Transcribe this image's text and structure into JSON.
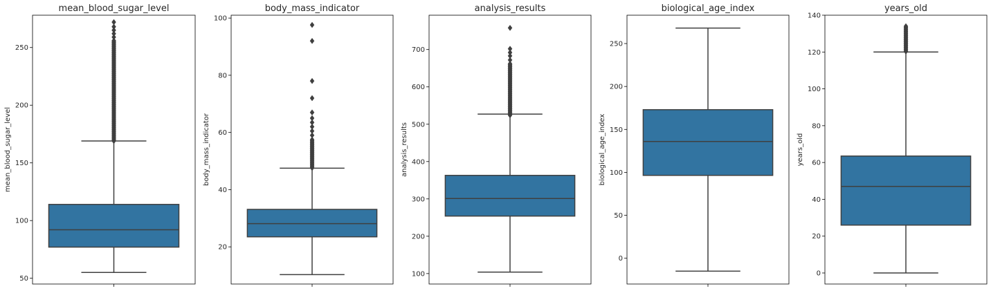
{
  "chart_data": [
    {
      "type": "box",
      "title": "mean_blood_sugar_level",
      "ylabel": "mean_blood_sugar_level",
      "ylim": [
        45,
        278
      ],
      "yticks": [
        50,
        100,
        150,
        200,
        250
      ],
      "box_color": "#3274a1",
      "stats": {
        "whisker_low": 55,
        "q1": 77,
        "median": 92,
        "q3": 114,
        "whisker_high": 169
      },
      "outliers": {
        "dense_from": 169,
        "dense_to": 256,
        "points": [
          259,
          262,
          265,
          268,
          272
        ]
      }
    },
    {
      "type": "box",
      "title": "body_mass_indicator",
      "ylabel": "body_mass_indicator",
      "ylim": [
        7,
        101
      ],
      "yticks": [
        20,
        40,
        60,
        80,
        100
      ],
      "box_color": "#3274a1",
      "stats": {
        "whisker_low": 10.3,
        "q1": 23.5,
        "median": 28.1,
        "q3": 33.1,
        "whisker_high": 47.5
      },
      "outliers": {
        "dense_from": 47.6,
        "dense_to": 57.5,
        "points": [
          59,
          60.5,
          62,
          63.5,
          65,
          67,
          72,
          78,
          92,
          97.6
        ]
      }
    },
    {
      "type": "box",
      "title": "analysis_results",
      "ylabel": "analysis_results",
      "ylim": [
        72,
        792
      ],
      "yticks": [
        100,
        200,
        300,
        400,
        500,
        600,
        700
      ],
      "box_color": "#3274a1",
      "stats": {
        "whisker_low": 104,
        "q1": 254,
        "median": 301,
        "q3": 363,
        "whisker_high": 527
      },
      "outliers": {
        "dense_from": 524,
        "dense_to": 662,
        "points": [
          672,
          683,
          692,
          702,
          758
        ]
      }
    },
    {
      "type": "box",
      "title": "biological_age_index",
      "ylabel": "biological_age_index",
      "ylim": [
        -30,
        283
      ],
      "yticks": [
        0,
        50,
        100,
        150,
        200,
        250
      ],
      "box_color": "#3274a1",
      "stats": {
        "whisker_low": -15,
        "q1": 96.5,
        "median": 136,
        "q3": 173,
        "whisker_high": 268
      },
      "outliers": {
        "dense_from": null,
        "dense_to": null,
        "points": []
      }
    },
    {
      "type": "box",
      "title": "years_old",
      "ylabel": "years_old",
      "ylim": [
        -6,
        140
      ],
      "yticks": [
        0,
        20,
        40,
        60,
        80,
        100,
        120,
        140
      ],
      "box_color": "#3274a1",
      "stats": {
        "whisker_low": 0,
        "q1": 26,
        "median": 47,
        "q3": 63.5,
        "whisker_high": 120
      },
      "outliers": {
        "dense_from": 120.3,
        "dense_to": 134,
        "points": []
      }
    }
  ]
}
